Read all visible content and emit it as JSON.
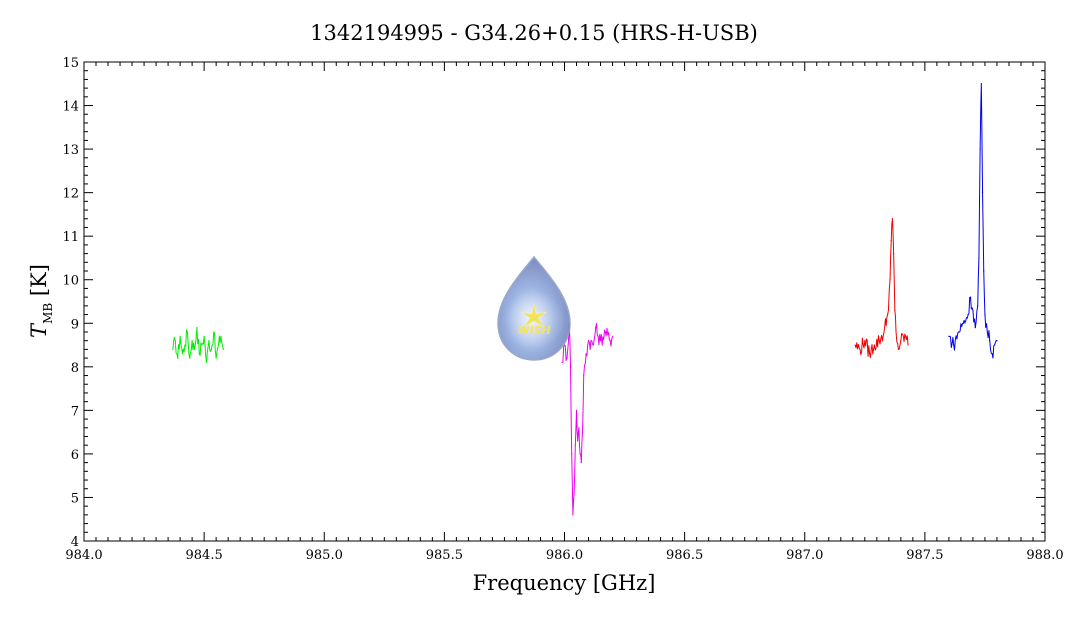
{
  "chart_data": {
    "type": "line",
    "title": "1342194995 - G34.26+0.15 (HRS-H-USB)",
    "xlabel": "Frequency [GHz]",
    "ylabel": {
      "symbol": "T",
      "subscript": "MB",
      "unit": "[K]"
    },
    "xlim": [
      984.0,
      988.0
    ],
    "ylim": [
      4,
      15
    ],
    "x_ticks": [
      "984.0",
      "984.5",
      "985.0",
      "985.5",
      "986.0",
      "986.5",
      "987.0",
      "987.5",
      "988.0"
    ],
    "y_ticks": [
      "4",
      "5",
      "6",
      "7",
      "8",
      "9",
      "10",
      "11",
      "12",
      "13",
      "14",
      "15"
    ],
    "grid": false,
    "logo_text": "WISH",
    "series": [
      {
        "color": "#00ee00",
        "points": [
          [
            984.37,
            8.4
          ],
          [
            984.38,
            8.6
          ],
          [
            984.39,
            8.2
          ],
          [
            984.4,
            8.7
          ],
          [
            984.41,
            8.3
          ],
          [
            984.42,
            8.5
          ],
          [
            984.43,
            8.8
          ],
          [
            984.44,
            8.2
          ],
          [
            984.45,
            8.6
          ],
          [
            984.46,
            8.4
          ],
          [
            984.47,
            8.9
          ],
          [
            984.48,
            8.3
          ],
          [
            984.49,
            8.5
          ],
          [
            984.5,
            8.7
          ],
          [
            984.51,
            8.1
          ],
          [
            984.52,
            8.6
          ],
          [
            984.53,
            8.4
          ],
          [
            984.54,
            8.8
          ],
          [
            984.55,
            8.2
          ],
          [
            984.56,
            8.5
          ],
          [
            984.57,
            8.7
          ],
          [
            984.58,
            8.4
          ]
        ]
      },
      {
        "color": "#ee00ee",
        "points": [
          [
            985.99,
            8.1
          ],
          [
            986.0,
            8.5
          ],
          [
            986.01,
            8.2
          ],
          [
            986.02,
            9.0
          ],
          [
            986.025,
            8.0
          ],
          [
            986.03,
            6.0
          ],
          [
            986.035,
            4.6
          ],
          [
            986.04,
            5.1
          ],
          [
            986.045,
            6.2
          ],
          [
            986.05,
            7.0
          ],
          [
            986.055,
            6.3
          ],
          [
            986.06,
            6.6
          ],
          [
            986.065,
            6.0
          ],
          [
            986.07,
            5.8
          ],
          [
            986.075,
            6.5
          ],
          [
            986.08,
            7.8
          ],
          [
            986.09,
            8.3
          ],
          [
            986.1,
            8.6
          ],
          [
            986.12,
            8.5
          ],
          [
            986.13,
            8.9
          ],
          [
            986.14,
            8.7
          ],
          [
            986.15,
            8.6
          ],
          [
            986.17,
            8.8
          ],
          [
            986.19,
            8.6
          ],
          [
            986.2,
            8.7
          ]
        ]
      },
      {
        "color": "#ee0000",
        "points": [
          [
            987.21,
            8.5
          ],
          [
            987.23,
            8.4
          ],
          [
            987.25,
            8.6
          ],
          [
            987.27,
            8.3
          ],
          [
            987.29,
            8.5
          ],
          [
            987.31,
            8.6
          ],
          [
            987.33,
            8.8
          ],
          [
            987.345,
            9.2
          ],
          [
            987.355,
            10.0
          ],
          [
            987.36,
            10.9
          ],
          [
            987.365,
            11.4
          ],
          [
            987.37,
            10.6
          ],
          [
            987.375,
            9.3
          ],
          [
            987.38,
            8.8
          ],
          [
            987.39,
            8.4
          ],
          [
            987.4,
            8.6
          ],
          [
            987.42,
            8.7
          ],
          [
            987.43,
            8.5
          ]
        ]
      },
      {
        "color": "#0000ee",
        "points": [
          [
            987.6,
            8.7
          ],
          [
            987.62,
            8.5
          ],
          [
            987.64,
            8.8
          ],
          [
            987.66,
            9.0
          ],
          [
            987.68,
            9.2
          ],
          [
            987.69,
            9.6
          ],
          [
            987.7,
            9.3
          ],
          [
            987.71,
            8.9
          ],
          [
            987.72,
            9.4
          ],
          [
            987.725,
            10.5
          ],
          [
            987.73,
            13.0
          ],
          [
            987.735,
            14.5
          ],
          [
            987.74,
            12.0
          ],
          [
            987.745,
            10.2
          ],
          [
            987.75,
            9.2
          ],
          [
            987.76,
            8.8
          ],
          [
            987.77,
            8.6
          ],
          [
            987.78,
            8.3
          ],
          [
            987.79,
            8.5
          ],
          [
            987.8,
            8.6
          ]
        ]
      }
    ]
  }
}
